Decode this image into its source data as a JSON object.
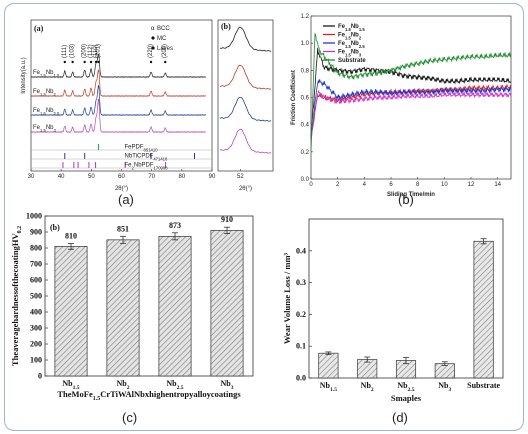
{
  "captions": {
    "a": "(a)",
    "b": "(b)",
    "c": "(c)",
    "d": "(d)"
  },
  "chart_data": [
    {
      "id": "a",
      "type": "line",
      "panel_labels": [
        "(a)",
        "(b)"
      ],
      "xlabel": "2θ(°)",
      "xlabel_b": "2θ(°)",
      "ylabel": "Intensity(a.u.)",
      "xlim": [
        30,
        90
      ],
      "x_ticks": [
        "30",
        "40",
        "50",
        "60",
        "70",
        "80",
        "90"
      ],
      "x_ticks_b": [
        "52"
      ],
      "legend": {
        "bcc": "α BCC",
        "mc": "MC",
        "laves": "Laves"
      },
      "peak_labels": [
        "(111)",
        "(103)",
        "(200)",
        "(112)",
        "(110)",
        "(201)",
        "(220)",
        "(200)"
      ],
      "peak_label_x": [
        41.2,
        43.8,
        47.8,
        49.9,
        51.6,
        52.4,
        69.8,
        74.5
      ],
      "series": [
        {
          "name": "Fe1.5Nb1.5",
          "color": "#222222"
        },
        {
          "name": "Fe1.5Nb2",
          "color": "#c0392b"
        },
        {
          "name": "Fe1.5Nb2.5",
          "color": "#1f3f99"
        },
        {
          "name": "Fe1.5Nb3",
          "color": "#b54ab5"
        }
      ],
      "references": [
        {
          "name": "Fe (PDF # 85-1410)",
          "color": "#2e9c2e",
          "peaks": [
            52.4
          ]
        },
        {
          "name": "(Nb,Ti) C (PDF # 47-1418)",
          "color": "#3a2fa0",
          "peaks": [
            41.2,
            47.8,
            69.8,
            84.2
          ]
        },
        {
          "name": "Fe2Nb (PDF # 17-0908)",
          "color": "#c22fc2",
          "peaks": [
            40.6,
            44.2,
            45.6,
            49.2,
            51.4,
            61.2,
            74.6
          ]
        }
      ]
    },
    {
      "id": "b",
      "type": "line",
      "xlabel": "Sliding Time/min",
      "ylabel": "Friction Coefficient",
      "xlim": [
        0,
        15
      ],
      "ylim": [
        0,
        1.2
      ],
      "x_ticks": [
        "0",
        "2",
        "4",
        "6",
        "8",
        "10",
        "12",
        "14"
      ],
      "y_ticks": [
        "0.0",
        "0.2",
        "0.4",
        "0.6",
        "0.8",
        "1.0",
        "1.2"
      ],
      "series": [
        {
          "name": "Fe1.5Nb1.5",
          "color": "#111111",
          "x": [
            0,
            0.5,
            1,
            2,
            3,
            4,
            5,
            6,
            7,
            8,
            9,
            10,
            11,
            12,
            13,
            14,
            15
          ],
          "y": [
            0.3,
            0.95,
            0.82,
            0.8,
            0.79,
            0.81,
            0.8,
            0.79,
            0.76,
            0.75,
            0.74,
            0.72,
            0.72,
            0.73,
            0.73,
            0.73,
            0.72
          ]
        },
        {
          "name": "Fe1.5Nb2",
          "color": "#d62020",
          "x": [
            0,
            0.5,
            1,
            2,
            3,
            4,
            5,
            6,
            7,
            8,
            9,
            10,
            11,
            12,
            13,
            14,
            15
          ],
          "y": [
            0.3,
            0.62,
            0.6,
            0.58,
            0.6,
            0.62,
            0.63,
            0.64,
            0.64,
            0.65,
            0.65,
            0.66,
            0.66,
            0.67,
            0.67,
            0.67,
            0.68
          ]
        },
        {
          "name": "Fe1.5Nb2.5",
          "color": "#1a33cc",
          "x": [
            0,
            0.5,
            1,
            2,
            3,
            4,
            5,
            6,
            7,
            8,
            9,
            10,
            11,
            12,
            13,
            14,
            15
          ],
          "y": [
            0.3,
            0.72,
            0.7,
            0.6,
            0.62,
            0.64,
            0.64,
            0.63,
            0.64,
            0.64,
            0.64,
            0.65,
            0.65,
            0.65,
            0.65,
            0.66,
            0.66
          ]
        },
        {
          "name": "Fe1.5Nb3",
          "color": "#cc33cc",
          "x": [
            0,
            0.5,
            1,
            2,
            3,
            4,
            5,
            6,
            7,
            8,
            9,
            10,
            11,
            12,
            13,
            14,
            15
          ],
          "y": [
            0.3,
            0.64,
            0.6,
            0.57,
            0.58,
            0.59,
            0.6,
            0.6,
            0.61,
            0.61,
            0.61,
            0.62,
            0.62,
            0.62,
            0.62,
            0.62,
            0.62
          ]
        },
        {
          "name": "Substrate",
          "color": "#1e8c2e",
          "x": [
            0,
            0.3,
            0.6,
            1,
            2,
            3,
            4,
            5,
            6,
            7,
            8,
            9,
            10,
            11,
            12,
            13,
            14,
            15
          ],
          "y": [
            0.2,
            1.08,
            0.95,
            0.9,
            0.78,
            0.75,
            0.77,
            0.78,
            0.8,
            0.83,
            0.85,
            0.87,
            0.88,
            0.89,
            0.9,
            0.9,
            0.91,
            0.91
          ]
        }
      ]
    },
    {
      "id": "c",
      "type": "bar",
      "panel_label": "(b)",
      "ylabel": "The average hardness of the coating/(HV0.2)",
      "xlabel": "The MoFe1.5CrTiWAlNbx high entropy alloy coatings",
      "categories": [
        "Nb1.5",
        "Nb2",
        "Nb2.5",
        "Nb3"
      ],
      "values": [
        810,
        851,
        873,
        910
      ],
      "value_labels": [
        "810",
        "851",
        "873",
        "910"
      ],
      "errors": [
        18,
        22,
        22,
        20
      ],
      "ylim": [
        0,
        1000
      ],
      "y_ticks": [
        "0",
        "100",
        "200",
        "300",
        "400",
        "500",
        "600",
        "700",
        "800",
        "900",
        "1000"
      ]
    },
    {
      "id": "d",
      "type": "bar",
      "ylabel": "Wear Volume Loss / mm³",
      "xlabel": "Smaples",
      "categories": [
        "Nb1.5",
        "Nb2",
        "Nb2.5",
        "Nb3",
        "Substrate"
      ],
      "values": [
        0.078,
        0.058,
        0.055,
        0.045,
        0.43
      ],
      "errors": [
        0.004,
        0.008,
        0.01,
        0.006,
        0.008
      ],
      "ylim": [
        0,
        0.5
      ],
      "y_ticks": [
        "0.0",
        "0.1",
        "0.2",
        "0.3",
        "0.4"
      ]
    }
  ]
}
